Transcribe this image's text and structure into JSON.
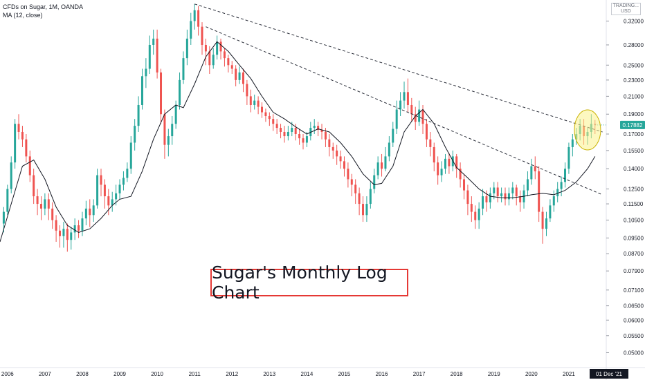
{
  "legend": {
    "symbol": "CFDs on Sugar, 1M, OANDA",
    "indicator": "MA (12, close)"
  },
  "currency": [
    "TRADING...",
    "USD"
  ],
  "annotation": "Sugar's Monthly Log Chart",
  "last_price": "0.17882",
  "cursor_date": "01 Dec '21",
  "colors": {
    "up": "#26a69a",
    "down": "#ef5350",
    "ma": "#131722",
    "trendline": "#2a2e39",
    "highlight_fill": "#fbf38c",
    "highlight_stroke": "#c9b200",
    "price_tag": "#26a69a",
    "date_tag": "#131722",
    "annotation_border": "#e53935"
  },
  "chart_data": {
    "type": "candlestick",
    "title": "CFDs on Sugar, 1M, OANDA",
    "y_scale": "log",
    "ylim": [
      0.046,
      0.36
    ],
    "y_ticks": [
      "0.32000",
      "0.28000",
      "0.25000",
      "0.23000",
      "0.21000",
      "0.19000",
      "0.17000",
      "0.15500",
      "0.14000",
      "0.12500",
      "0.11500",
      "0.10500",
      "0.09500",
      "0.08700",
      "0.07900",
      "0.07100",
      "0.06500",
      "0.06000",
      "0.05500",
      "0.05000"
    ],
    "x_ticks": [
      "2006",
      "2007",
      "2008",
      "2009",
      "2010",
      "2011",
      "2012",
      "2013",
      "2014",
      "2015",
      "2016",
      "2017",
      "2018",
      "2019",
      "2020",
      "2021"
    ],
    "x_range": [
      2005.8,
      2022.0
    ],
    "series": [
      {
        "name": "MA (12, close)",
        "points": [
          [
            2005.8,
            0.093
          ],
          [
            2006.1,
            0.115
          ],
          [
            2006.4,
            0.142
          ],
          [
            2006.7,
            0.147
          ],
          [
            2007.0,
            0.132
          ],
          [
            2007.3,
            0.113
          ],
          [
            2007.6,
            0.102
          ],
          [
            2007.9,
            0.098
          ],
          [
            2008.2,
            0.1
          ],
          [
            2008.5,
            0.106
          ],
          [
            2008.8,
            0.114
          ],
          [
            2009.0,
            0.118
          ],
          [
            2009.3,
            0.12
          ],
          [
            2009.6,
            0.138
          ],
          [
            2009.9,
            0.165
          ],
          [
            2010.2,
            0.19
          ],
          [
            2010.5,
            0.2
          ],
          [
            2010.7,
            0.197
          ],
          [
            2011.0,
            0.225
          ],
          [
            2011.3,
            0.262
          ],
          [
            2011.6,
            0.285
          ],
          [
            2011.9,
            0.27
          ],
          [
            2012.2,
            0.25
          ],
          [
            2012.5,
            0.232
          ],
          [
            2012.8,
            0.21
          ],
          [
            2013.1,
            0.192
          ],
          [
            2013.4,
            0.185
          ],
          [
            2013.7,
            0.177
          ],
          [
            2014.0,
            0.17
          ],
          [
            2014.3,
            0.175
          ],
          [
            2014.6,
            0.172
          ],
          [
            2014.9,
            0.162
          ],
          [
            2015.2,
            0.15
          ],
          [
            2015.5,
            0.136
          ],
          [
            2015.8,
            0.128
          ],
          [
            2016.0,
            0.129
          ],
          [
            2016.3,
            0.142
          ],
          [
            2016.6,
            0.172
          ],
          [
            2016.9,
            0.188
          ],
          [
            2017.1,
            0.195
          ],
          [
            2017.4,
            0.18
          ],
          [
            2017.7,
            0.158
          ],
          [
            2018.0,
            0.141
          ],
          [
            2018.3,
            0.133
          ],
          [
            2018.6,
            0.125
          ],
          [
            2018.9,
            0.12
          ],
          [
            2019.2,
            0.119
          ],
          [
            2019.5,
            0.119
          ],
          [
            2019.8,
            0.12
          ],
          [
            2020.0,
            0.121
          ],
          [
            2020.3,
            0.122
          ],
          [
            2020.6,
            0.121
          ],
          [
            2020.9,
            0.124
          ],
          [
            2021.2,
            0.13
          ],
          [
            2021.5,
            0.14
          ],
          [
            2021.7,
            0.15
          ]
        ]
      }
    ],
    "trendlines": [
      {
        "from": [
          2011.0,
          0.352
        ],
        "to": [
          2021.9,
          0.172
        ]
      },
      {
        "from": [
          2011.3,
          0.31
        ],
        "to": [
          2021.9,
          0.121
        ]
      }
    ],
    "highlight": {
      "center": [
        2021.5,
        0.174
      ]
    },
    "candles": [
      [
        2005.9,
        0.103,
        0.11,
        0.098,
        0.113
      ],
      [
        2006.0,
        0.11,
        0.125,
        0.108,
        0.128
      ],
      [
        2006.1,
        0.125,
        0.145,
        0.122,
        0.15
      ],
      [
        2006.2,
        0.145,
        0.18,
        0.14,
        0.185
      ],
      [
        2006.3,
        0.18,
        0.172,
        0.165,
        0.19
      ],
      [
        2006.4,
        0.172,
        0.165,
        0.158,
        0.178
      ],
      [
        2006.5,
        0.165,
        0.15,
        0.145,
        0.17
      ],
      [
        2006.6,
        0.15,
        0.135,
        0.13,
        0.155
      ],
      [
        2006.7,
        0.135,
        0.12,
        0.115,
        0.14
      ],
      [
        2006.8,
        0.12,
        0.115,
        0.108,
        0.125
      ],
      [
        2006.9,
        0.115,
        0.112,
        0.105,
        0.12
      ],
      [
        2007.0,
        0.112,
        0.118,
        0.108,
        0.122
      ],
      [
        2007.1,
        0.118,
        0.112,
        0.105,
        0.122
      ],
      [
        2007.2,
        0.112,
        0.105,
        0.1,
        0.116
      ],
      [
        2007.3,
        0.105,
        0.099,
        0.093,
        0.108
      ],
      [
        2007.4,
        0.099,
        0.096,
        0.09,
        0.102
      ],
      [
        2007.5,
        0.096,
        0.1,
        0.09,
        0.104
      ],
      [
        2007.6,
        0.1,
        0.094,
        0.088,
        0.103
      ],
      [
        2007.7,
        0.094,
        0.098,
        0.089,
        0.101
      ],
      [
        2007.8,
        0.098,
        0.102,
        0.094,
        0.106
      ],
      [
        2007.9,
        0.102,
        0.099,
        0.095,
        0.105
      ],
      [
        2008.0,
        0.099,
        0.106,
        0.096,
        0.11
      ],
      [
        2008.1,
        0.106,
        0.112,
        0.102,
        0.117
      ],
      [
        2008.2,
        0.112,
        0.108,
        0.101,
        0.118
      ],
      [
        2008.3,
        0.108,
        0.114,
        0.104,
        0.118
      ],
      [
        2008.4,
        0.114,
        0.135,
        0.112,
        0.14
      ],
      [
        2008.5,
        0.135,
        0.128,
        0.12,
        0.14
      ],
      [
        2008.6,
        0.128,
        0.12,
        0.112,
        0.132
      ],
      [
        2008.7,
        0.12,
        0.114,
        0.108,
        0.125
      ],
      [
        2008.8,
        0.114,
        0.118,
        0.11,
        0.123
      ],
      [
        2008.9,
        0.118,
        0.122,
        0.114,
        0.128
      ],
      [
        2009.0,
        0.122,
        0.128,
        0.118,
        0.132
      ],
      [
        2009.1,
        0.128,
        0.133,
        0.124,
        0.138
      ],
      [
        2009.2,
        0.133,
        0.14,
        0.13,
        0.145
      ],
      [
        2009.3,
        0.14,
        0.162,
        0.136,
        0.168
      ],
      [
        2009.4,
        0.162,
        0.178,
        0.155,
        0.185
      ],
      [
        2009.5,
        0.178,
        0.2,
        0.172,
        0.21
      ],
      [
        2009.6,
        0.2,
        0.235,
        0.195,
        0.245
      ],
      [
        2009.7,
        0.235,
        0.245,
        0.22,
        0.26
      ],
      [
        2009.8,
        0.245,
        0.28,
        0.238,
        0.295
      ],
      [
        2009.9,
        0.28,
        0.29,
        0.265,
        0.305
      ],
      [
        2010.0,
        0.29,
        0.24,
        0.232,
        0.305
      ],
      [
        2010.1,
        0.24,
        0.19,
        0.18,
        0.245
      ],
      [
        2010.2,
        0.19,
        0.16,
        0.148,
        0.195
      ],
      [
        2010.3,
        0.16,
        0.168,
        0.15,
        0.175
      ],
      [
        2010.4,
        0.168,
        0.18,
        0.16,
        0.188
      ],
      [
        2010.5,
        0.18,
        0.2,
        0.175,
        0.205
      ],
      [
        2010.6,
        0.2,
        0.23,
        0.195,
        0.24
      ],
      [
        2010.7,
        0.23,
        0.26,
        0.225,
        0.27
      ],
      [
        2010.8,
        0.26,
        0.29,
        0.25,
        0.305
      ],
      [
        2010.9,
        0.29,
        0.32,
        0.28,
        0.335
      ],
      [
        2011.0,
        0.32,
        0.34,
        0.305,
        0.352
      ],
      [
        2011.1,
        0.34,
        0.31,
        0.295,
        0.348
      ],
      [
        2011.2,
        0.31,
        0.28,
        0.265,
        0.318
      ],
      [
        2011.3,
        0.28,
        0.27,
        0.25,
        0.29
      ],
      [
        2011.4,
        0.27,
        0.25,
        0.238,
        0.278
      ],
      [
        2011.5,
        0.25,
        0.265,
        0.245,
        0.275
      ],
      [
        2011.6,
        0.265,
        0.285,
        0.258,
        0.295
      ],
      [
        2011.7,
        0.285,
        0.27,
        0.258,
        0.29
      ],
      [
        2011.8,
        0.27,
        0.26,
        0.248,
        0.275
      ],
      [
        2011.9,
        0.26,
        0.25,
        0.24,
        0.265
      ],
      [
        2012.0,
        0.25,
        0.245,
        0.238,
        0.256
      ],
      [
        2012.1,
        0.245,
        0.23,
        0.222,
        0.25
      ],
      [
        2012.2,
        0.23,
        0.24,
        0.225,
        0.248
      ],
      [
        2012.3,
        0.24,
        0.225,
        0.215,
        0.245
      ],
      [
        2012.4,
        0.225,
        0.21,
        0.2,
        0.23
      ],
      [
        2012.5,
        0.21,
        0.2,
        0.192,
        0.218
      ],
      [
        2012.6,
        0.2,
        0.205,
        0.195,
        0.212
      ],
      [
        2012.7,
        0.205,
        0.198,
        0.19,
        0.21
      ],
      [
        2012.8,
        0.198,
        0.192,
        0.186,
        0.203
      ],
      [
        2012.9,
        0.192,
        0.188,
        0.182,
        0.196
      ],
      [
        2013.0,
        0.188,
        0.185,
        0.178,
        0.192
      ],
      [
        2013.1,
        0.185,
        0.18,
        0.173,
        0.19
      ],
      [
        2013.2,
        0.18,
        0.176,
        0.17,
        0.185
      ],
      [
        2013.3,
        0.176,
        0.172,
        0.166,
        0.18
      ],
      [
        2013.4,
        0.172,
        0.168,
        0.162,
        0.178
      ],
      [
        2013.5,
        0.168,
        0.172,
        0.164,
        0.178
      ],
      [
        2013.6,
        0.172,
        0.176,
        0.168,
        0.182
      ],
      [
        2013.7,
        0.176,
        0.17,
        0.164,
        0.18
      ],
      [
        2013.8,
        0.17,
        0.166,
        0.16,
        0.175
      ],
      [
        2013.9,
        0.166,
        0.162,
        0.156,
        0.17
      ],
      [
        2014.0,
        0.162,
        0.168,
        0.158,
        0.172
      ],
      [
        2014.1,
        0.168,
        0.176,
        0.164,
        0.182
      ],
      [
        2014.2,
        0.176,
        0.178,
        0.17,
        0.185
      ],
      [
        2014.3,
        0.178,
        0.174,
        0.168,
        0.182
      ],
      [
        2014.4,
        0.174,
        0.172,
        0.165,
        0.18
      ],
      [
        2014.5,
        0.172,
        0.165,
        0.158,
        0.176
      ],
      [
        2014.6,
        0.165,
        0.158,
        0.15,
        0.17
      ],
      [
        2014.7,
        0.158,
        0.155,
        0.148,
        0.162
      ],
      [
        2014.8,
        0.155,
        0.15,
        0.143,
        0.16
      ],
      [
        2014.9,
        0.15,
        0.146,
        0.14,
        0.155
      ],
      [
        2015.0,
        0.146,
        0.14,
        0.134,
        0.15
      ],
      [
        2015.1,
        0.14,
        0.132,
        0.126,
        0.145
      ],
      [
        2015.2,
        0.132,
        0.128,
        0.12,
        0.136
      ],
      [
        2015.3,
        0.128,
        0.122,
        0.115,
        0.132
      ],
      [
        2015.4,
        0.122,
        0.115,
        0.108,
        0.126
      ],
      [
        2015.5,
        0.115,
        0.108,
        0.104,
        0.12
      ],
      [
        2015.6,
        0.108,
        0.115,
        0.104,
        0.12
      ],
      [
        2015.7,
        0.115,
        0.125,
        0.112,
        0.13
      ],
      [
        2015.8,
        0.125,
        0.135,
        0.122,
        0.14
      ],
      [
        2015.9,
        0.135,
        0.145,
        0.132,
        0.15
      ],
      [
        2016.0,
        0.145,
        0.14,
        0.134,
        0.152
      ],
      [
        2016.1,
        0.14,
        0.15,
        0.138,
        0.158
      ],
      [
        2016.2,
        0.15,
        0.162,
        0.146,
        0.168
      ],
      [
        2016.3,
        0.162,
        0.175,
        0.158,
        0.182
      ],
      [
        2016.4,
        0.175,
        0.195,
        0.17,
        0.205
      ],
      [
        2016.5,
        0.195,
        0.205,
        0.188,
        0.215
      ],
      [
        2016.6,
        0.205,
        0.215,
        0.196,
        0.228
      ],
      [
        2016.7,
        0.215,
        0.2,
        0.192,
        0.232
      ],
      [
        2016.8,
        0.2,
        0.19,
        0.182,
        0.208
      ],
      [
        2016.9,
        0.19,
        0.182,
        0.174,
        0.198
      ],
      [
        2017.0,
        0.182,
        0.195,
        0.178,
        0.205
      ],
      [
        2017.1,
        0.195,
        0.18,
        0.17,
        0.2
      ],
      [
        2017.2,
        0.18,
        0.165,
        0.158,
        0.185
      ],
      [
        2017.3,
        0.165,
        0.158,
        0.15,
        0.172
      ],
      [
        2017.4,
        0.158,
        0.145,
        0.138,
        0.162
      ],
      [
        2017.5,
        0.145,
        0.135,
        0.128,
        0.15
      ],
      [
        2017.6,
        0.135,
        0.14,
        0.13,
        0.146
      ],
      [
        2017.7,
        0.14,
        0.148,
        0.136,
        0.152
      ],
      [
        2017.8,
        0.148,
        0.142,
        0.136,
        0.153
      ],
      [
        2017.9,
        0.142,
        0.15,
        0.138,
        0.155
      ],
      [
        2018.0,
        0.15,
        0.14,
        0.133,
        0.152
      ],
      [
        2018.1,
        0.14,
        0.132,
        0.126,
        0.145
      ],
      [
        2018.2,
        0.132,
        0.124,
        0.118,
        0.136
      ],
      [
        2018.3,
        0.124,
        0.115,
        0.108,
        0.128
      ],
      [
        2018.4,
        0.115,
        0.11,
        0.104,
        0.12
      ],
      [
        2018.5,
        0.11,
        0.105,
        0.1,
        0.114
      ],
      [
        2018.6,
        0.105,
        0.112,
        0.1,
        0.116
      ],
      [
        2018.7,
        0.112,
        0.12,
        0.108,
        0.125
      ],
      [
        2018.8,
        0.12,
        0.116,
        0.11,
        0.124
      ],
      [
        2018.9,
        0.116,
        0.122,
        0.112,
        0.126
      ],
      [
        2019.0,
        0.122,
        0.126,
        0.118,
        0.13
      ],
      [
        2019.1,
        0.126,
        0.12,
        0.116,
        0.13
      ],
      [
        2019.2,
        0.12,
        0.122,
        0.116,
        0.126
      ],
      [
        2019.3,
        0.122,
        0.118,
        0.114,
        0.126
      ],
      [
        2019.4,
        0.118,
        0.122,
        0.114,
        0.126
      ],
      [
        2019.5,
        0.122,
        0.126,
        0.118,
        0.13
      ],
      [
        2019.6,
        0.126,
        0.12,
        0.114,
        0.128
      ],
      [
        2019.7,
        0.12,
        0.116,
        0.11,
        0.124
      ],
      [
        2019.8,
        0.116,
        0.124,
        0.112,
        0.128
      ],
      [
        2019.9,
        0.124,
        0.132,
        0.12,
        0.138
      ],
      [
        2020.0,
        0.132,
        0.142,
        0.128,
        0.148
      ],
      [
        2020.1,
        0.142,
        0.138,
        0.132,
        0.15
      ],
      [
        2020.2,
        0.138,
        0.11,
        0.104,
        0.142
      ],
      [
        2020.3,
        0.11,
        0.1,
        0.092,
        0.113
      ],
      [
        2020.4,
        0.1,
        0.106,
        0.096,
        0.11
      ],
      [
        2020.5,
        0.106,
        0.114,
        0.104,
        0.118
      ],
      [
        2020.6,
        0.114,
        0.12,
        0.11,
        0.124
      ],
      [
        2020.7,
        0.12,
        0.125,
        0.116,
        0.13
      ],
      [
        2020.8,
        0.125,
        0.13,
        0.12,
        0.134
      ],
      [
        2020.9,
        0.13,
        0.14,
        0.126,
        0.145
      ],
      [
        2021.0,
        0.14,
        0.158,
        0.136,
        0.162
      ],
      [
        2021.1,
        0.158,
        0.165,
        0.15,
        0.17
      ],
      [
        2021.2,
        0.165,
        0.17,
        0.16,
        0.176
      ],
      [
        2021.3,
        0.17,
        0.178,
        0.164,
        0.185
      ],
      [
        2021.4,
        0.178,
        0.168,
        0.16,
        0.185
      ],
      [
        2021.5,
        0.168,
        0.172,
        0.16,
        0.176
      ],
      [
        2021.6,
        0.172,
        0.18,
        0.166,
        0.19
      ],
      [
        2021.7,
        0.18,
        0.179,
        0.17,
        0.184
      ]
    ]
  }
}
